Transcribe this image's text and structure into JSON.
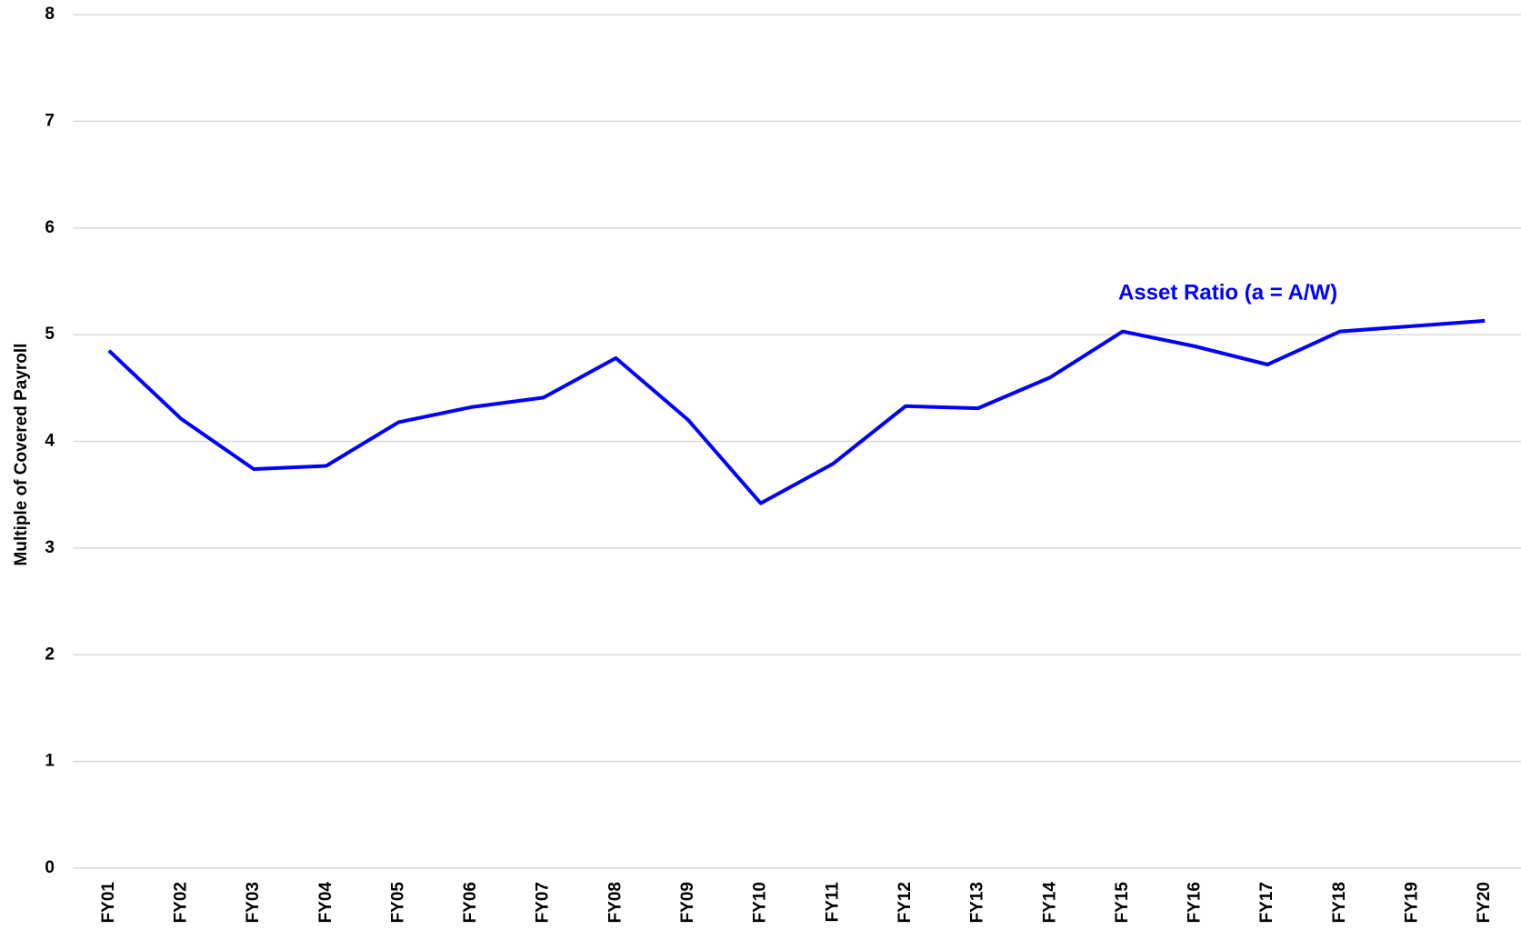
{
  "chart_data": {
    "type": "line",
    "y_label": "Multiple of Covered Payroll",
    "categories": [
      "FY01",
      "FY02",
      "FY03",
      "FY04",
      "FY05",
      "FY06",
      "FY07",
      "FY08",
      "FY09",
      "FY10",
      "FY11",
      "FY12",
      "FY13",
      "FY14",
      "FY15",
      "FY16",
      "FY17",
      "FY18",
      "FY19",
      "FY20"
    ],
    "series": [
      {
        "name": "Asset Ratio (a = A/W)",
        "color": "#0000ff",
        "values": [
          4.85,
          4.21,
          3.74,
          3.77,
          4.18,
          4.32,
          4.41,
          4.78,
          4.2,
          3.42,
          3.79,
          4.33,
          4.31,
          4.6,
          5.03,
          4.89,
          4.72,
          5.03,
          5.08,
          5.13
        ]
      }
    ],
    "ylim": [
      0,
      8
    ],
    "yticks": [
      0,
      1,
      2,
      3,
      4,
      5,
      6,
      7,
      8
    ],
    "grid": true
  }
}
